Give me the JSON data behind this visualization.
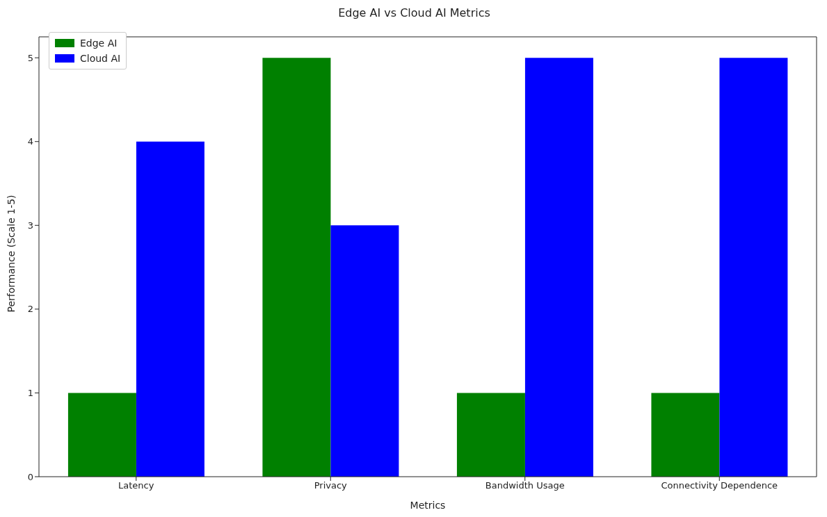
{
  "chart_data": {
    "type": "bar",
    "title": "Edge AI vs Cloud AI Metrics",
    "xlabel": "Metrics",
    "ylabel": "Performance (Scale 1-5)",
    "categories": [
      "Latency",
      "Privacy",
      "Bandwidth Usage",
      "Connectivity Dependence"
    ],
    "series": [
      {
        "name": "Edge AI",
        "color": "#008000",
        "values": [
          1,
          5,
          1,
          1
        ]
      },
      {
        "name": "Cloud AI",
        "color": "#0000ff",
        "values": [
          4,
          3,
          5,
          5
        ]
      }
    ],
    "ylim": [
      0,
      5.25
    ],
    "yticks": [
      0,
      1,
      2,
      3,
      4,
      5
    ],
    "legend": "top left",
    "grid": false
  }
}
